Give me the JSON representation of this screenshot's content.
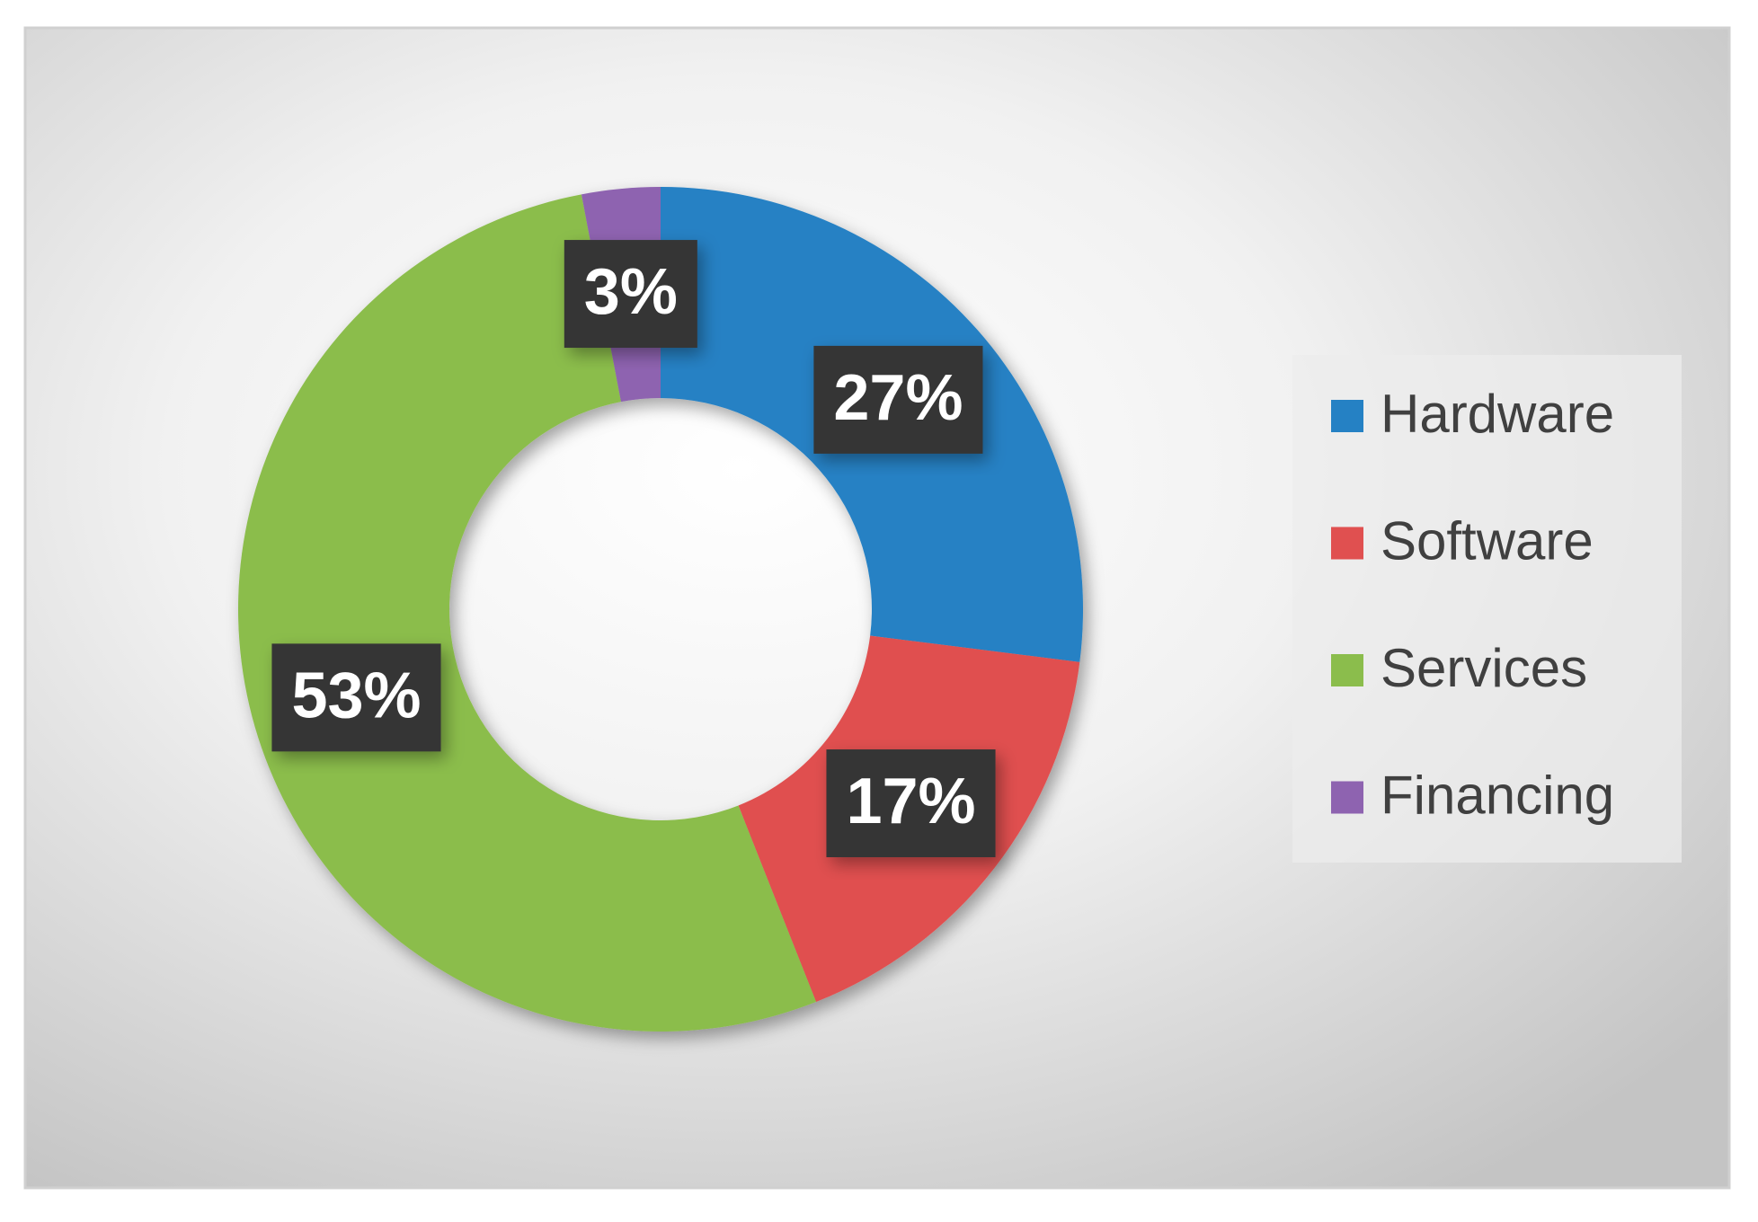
{
  "chart_data": {
    "type": "pie",
    "donut": true,
    "categories": [
      "Hardware",
      "Software",
      "Services",
      "Financing"
    ],
    "values": [
      27,
      17,
      53,
      3
    ],
    "value_labels": [
      "27%",
      "17%",
      "53%",
      "3%"
    ],
    "colors": [
      "#2581c4",
      "#e05050",
      "#8bbd4c",
      "#8e63b0"
    ],
    "legend": "right"
  }
}
